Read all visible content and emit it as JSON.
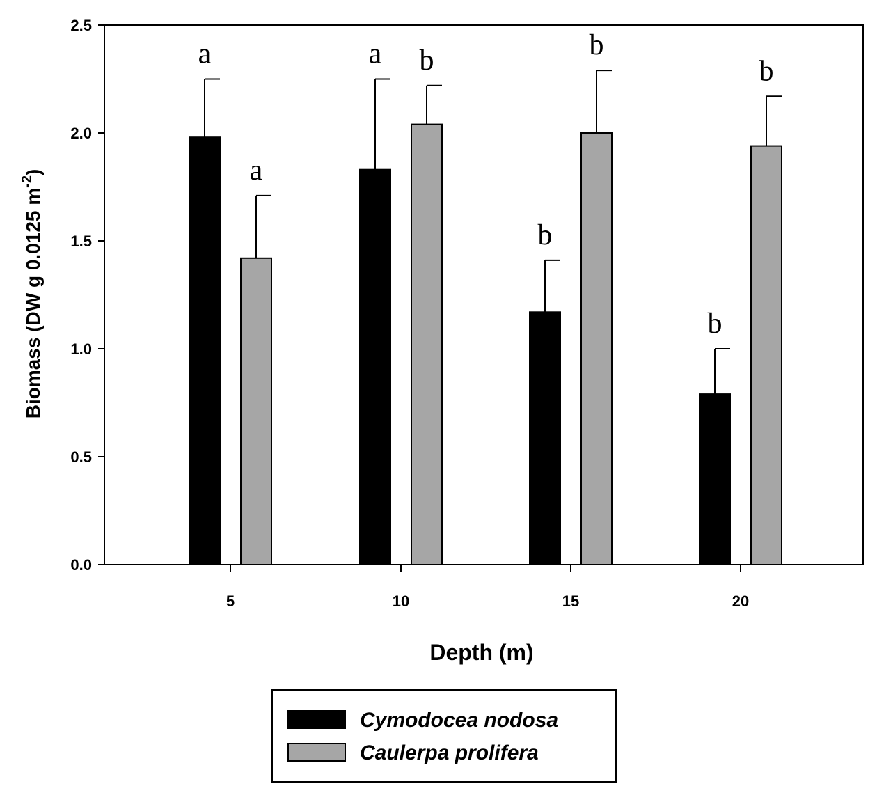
{
  "chart_data": {
    "type": "bar",
    "xlabel": "Depth (m)",
    "ylabel_main": "Biomass (DW g 0.0125 m",
    "ylabel_sup": "-2",
    "ylabel_close": ")",
    "categories": [
      "5",
      "10",
      "15",
      "20"
    ],
    "ylim": [
      0,
      2.5
    ],
    "yticks": [
      "0.0",
      "0.5",
      "1.0",
      "1.5",
      "2.0",
      "2.5"
    ],
    "grid": false,
    "legend_position": "bottom-center",
    "series": [
      {
        "name": "Cymodocea nodosa",
        "color": "#000000",
        "values": [
          1.98,
          1.83,
          1.17,
          0.79
        ],
        "errors": [
          0.27,
          0.42,
          0.24,
          0.21
        ],
        "letters": [
          "a",
          "a",
          "b",
          "b"
        ]
      },
      {
        "name": "Caulerpa prolifera",
        "color": "#a6a6a6",
        "values": [
          1.42,
          2.04,
          2.0,
          1.94
        ],
        "errors": [
          0.29,
          0.18,
          0.29,
          0.23
        ],
        "letters": [
          "a",
          "b",
          "b",
          "b"
        ]
      }
    ]
  }
}
